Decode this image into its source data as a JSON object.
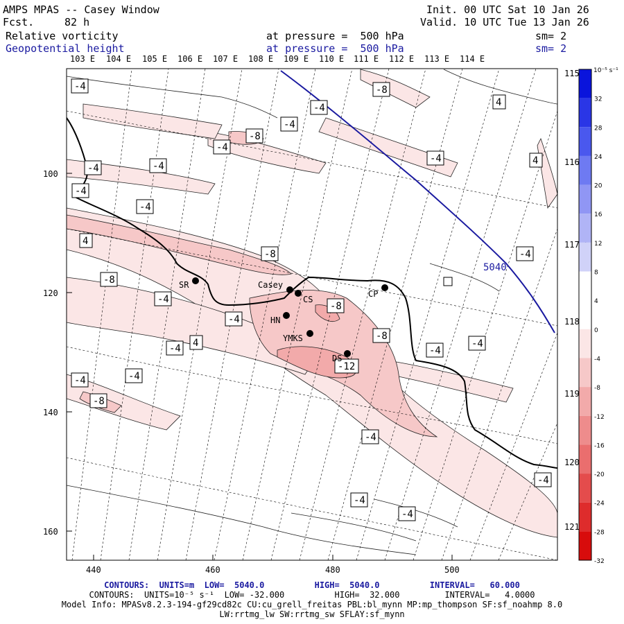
{
  "header": {
    "title": "AMPS MPAS -- Casey Window",
    "fcst_label": "Fcst.",
    "fcst_value": "82 h",
    "init": "Init. 00 UTC Sat 10 Jan 26",
    "valid": "Valid. 10 UTC Tue 13 Jan 26",
    "field1": "Relative vorticity",
    "field1_level": "at pressure =  500 hPa",
    "field1_sm": "sm= 2",
    "field2": "Geopotential height",
    "field2_level": "at pressure =  500 hPa",
    "field2_sm": "sm= 2"
  },
  "top_lon_labels": [
    "103 E",
    "104 E",
    "105 E",
    "106 E",
    "107 E",
    "108 E",
    "109 E",
    "110 E",
    "111 E",
    "112 E",
    "113 E",
    "114 E"
  ],
  "right_lon_labels": [
    "115 E",
    "116 E",
    "117 E",
    "118 E",
    "119 E",
    "120 E",
    "121 E"
  ],
  "x_axis": {
    "ticks": [
      "440",
      "460",
      "480",
      "500"
    ]
  },
  "y_axis": {
    "ticks": [
      "100",
      "120",
      "140",
      "160"
    ]
  },
  "stations": [
    {
      "name": "SR"
    },
    {
      "name": "Casey"
    },
    {
      "name": "CS"
    },
    {
      "name": "CP"
    },
    {
      "name": "HN"
    },
    {
      "name": "YMKS"
    },
    {
      "name": "DS"
    }
  ],
  "height_contour_label": "5040",
  "vorticity_labels": [
    "-4",
    "-8",
    "-12",
    "4"
  ],
  "colorbar": {
    "unit": "10⁻⁵ s⁻¹",
    "ticks": [
      "32",
      "28",
      "24",
      "20",
      "16",
      "12",
      "8",
      "4",
      "0",
      "-4",
      "-8",
      "-12",
      "-16",
      "-20",
      "-24",
      "-28",
      "-32"
    ],
    "colors": [
      "#0a14dc",
      "#2a36e6",
      "#4a58ee",
      "#6e7af2",
      "#9096f4",
      "#b0b4f6",
      "#d0d2f8",
      "#ffffff",
      "#ffffff",
      "#fbe6e6",
      "#f6c8c8",
      "#f2aaaa",
      "#ee8c8c",
      "#ea6e6e",
      "#e44c4c",
      "#de2c2c",
      "#d80c0c"
    ]
  },
  "footer": {
    "line1": "CONTOURS:  UNITS=m  LOW=  5040.0          HIGH=  5040.0          INTERVAL=   60.000",
    "line2": "CONTOURS:  UNITS=10⁻⁵ s⁻¹  LOW= -32.000          HIGH=  32.000         INTERVAL=   4.0000",
    "line3": "Model Info: MPASv8.2.3-194-gf29cd82c CU:cu_grell_freitas PBL:bl_mynn MP:mp_thompson SF:sf_noahmp 8.0",
    "line4": "LW:rrtmg_lw SW:rrtmg_sw SFLAY:sf_mynn"
  }
}
